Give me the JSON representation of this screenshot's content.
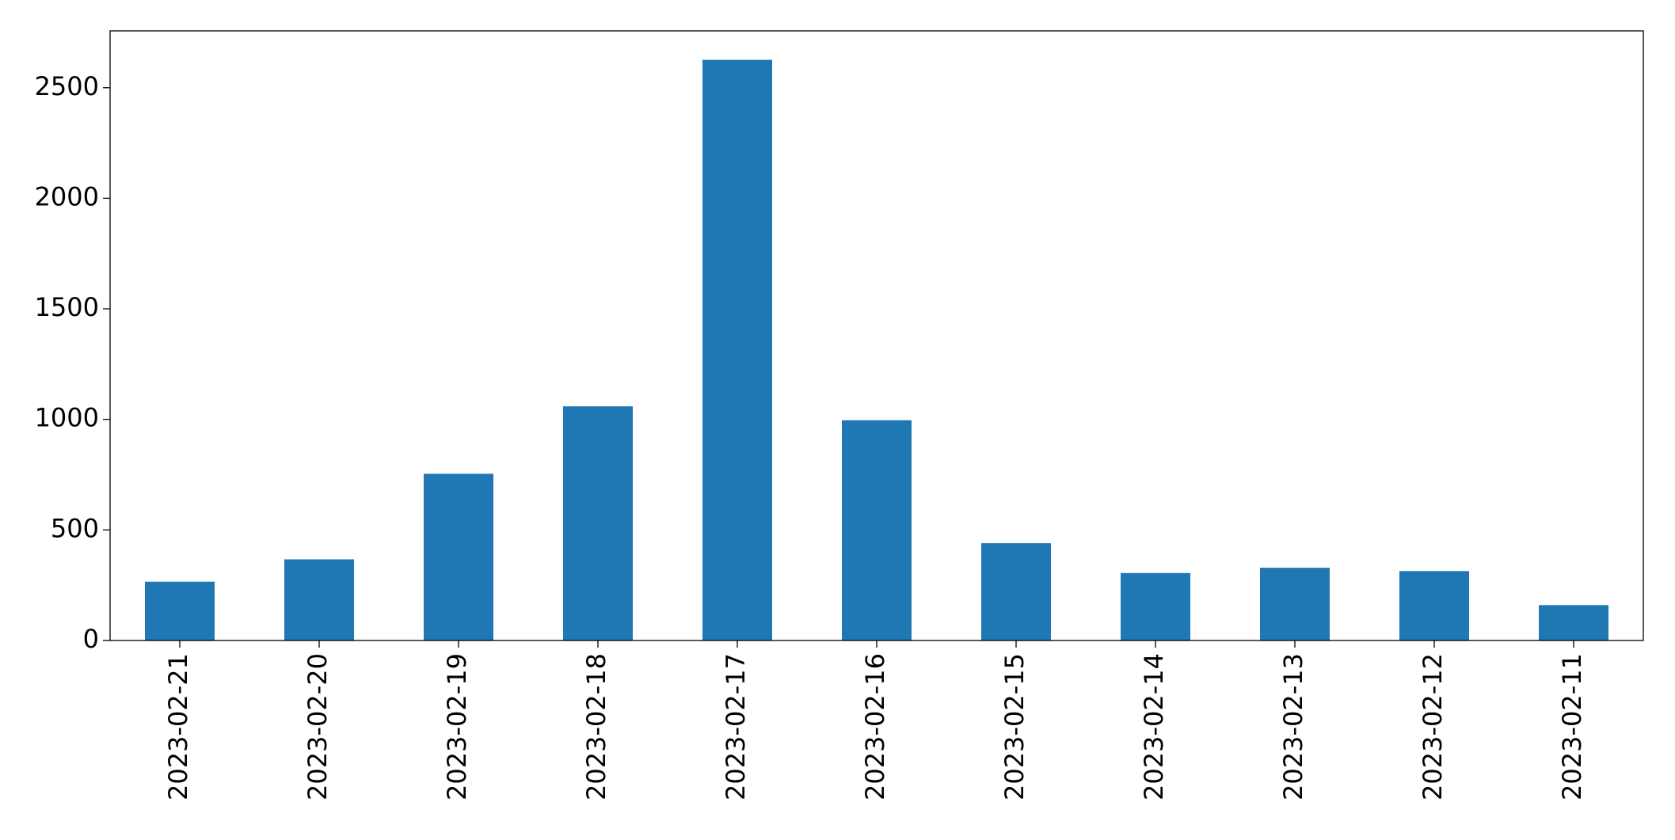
{
  "chart_data": {
    "type": "bar",
    "categories": [
      "2023-02-21",
      "2023-02-20",
      "2023-02-19",
      "2023-02-18",
      "2023-02-17",
      "2023-02-16",
      "2023-02-15",
      "2023-02-14",
      "2023-02-13",
      "2023-02-12",
      "2023-02-11"
    ],
    "values": [
      266,
      367,
      754,
      1059,
      2626,
      996,
      440,
      305,
      329,
      314,
      160
    ],
    "color": "#1f77b4",
    "ylim": [
      0,
      2757
    ],
    "yticks": [
      0,
      500,
      1000,
      1500,
      2000,
      2500
    ],
    "grid": false
  }
}
